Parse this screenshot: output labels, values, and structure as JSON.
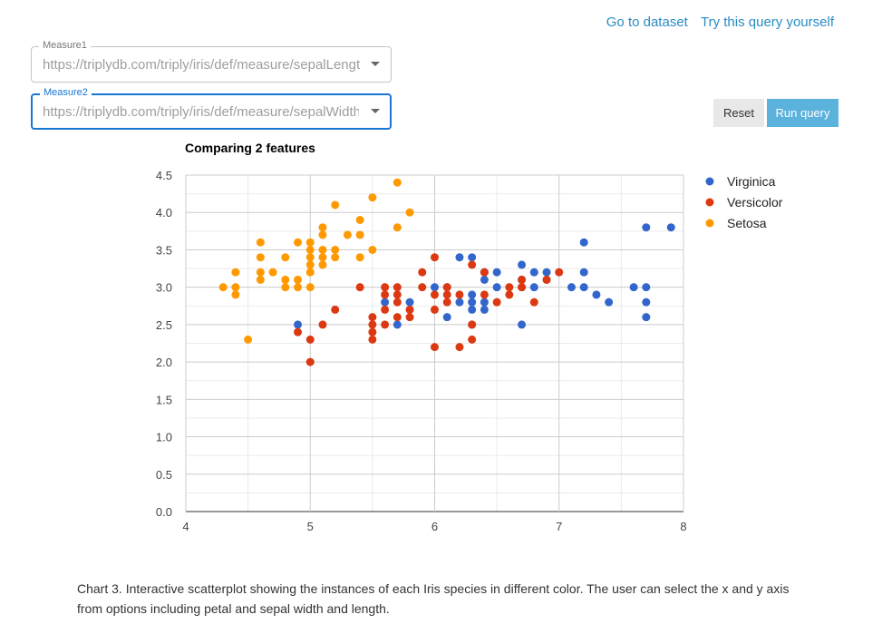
{
  "links": {
    "dataset": "Go to dataset",
    "query": "Try this query yourself"
  },
  "measure1": {
    "label": "Measure1",
    "value": "https://triplydb.com/triply/iris/def/measure/sepalLength"
  },
  "measure2": {
    "label": "Measure2",
    "value": "https://triplydb.com/triply/iris/def/measure/sepalWidth"
  },
  "buttons": {
    "reset": "Reset",
    "run": "Run query"
  },
  "caption": "Chart 3. Interactive scatterplot showing the instances of each Iris species in different color. The user can select the x and y axis from options including petal and sepal width and length.",
  "chart_data": {
    "type": "scatter",
    "title": "Comparing 2 features",
    "xlabel": "",
    "ylabel": "",
    "xlim": [
      4,
      8
    ],
    "ylim": [
      0,
      4.5
    ],
    "xticks": [
      "4",
      "5",
      "6",
      "7",
      "8"
    ],
    "yticks": [
      "0.0",
      "0.5",
      "1.0",
      "1.5",
      "2.0",
      "2.5",
      "3.0",
      "3.5",
      "4.0",
      "4.5"
    ],
    "grid": true,
    "legend_position": "right",
    "series": [
      {
        "name": "Virginica",
        "color": "#3366cc",
        "points": [
          [
            4.9,
            2.5
          ],
          [
            5.6,
            2.8
          ],
          [
            5.7,
            2.5
          ],
          [
            5.8,
            2.8
          ],
          [
            5.8,
            2.7
          ],
          [
            6.0,
            3.0
          ],
          [
            6.1,
            3.0
          ],
          [
            6.1,
            2.6
          ],
          [
            6.2,
            3.4
          ],
          [
            6.2,
            2.8
          ],
          [
            6.3,
            3.4
          ],
          [
            6.3,
            2.9
          ],
          [
            6.3,
            2.8
          ],
          [
            6.3,
            2.7
          ],
          [
            6.3,
            2.5
          ],
          [
            6.4,
            3.2
          ],
          [
            6.4,
            3.1
          ],
          [
            6.4,
            2.8
          ],
          [
            6.4,
            2.7
          ],
          [
            6.5,
            3.2
          ],
          [
            6.5,
            3.0
          ],
          [
            6.7,
            3.3
          ],
          [
            6.7,
            3.1
          ],
          [
            6.7,
            3.0
          ],
          [
            6.7,
            2.5
          ],
          [
            6.8,
            3.2
          ],
          [
            6.8,
            3.0
          ],
          [
            6.9,
            3.2
          ],
          [
            6.9,
            3.1
          ],
          [
            7.1,
            3.0
          ],
          [
            7.2,
            3.6
          ],
          [
            7.2,
            3.2
          ],
          [
            7.2,
            3.0
          ],
          [
            7.3,
            2.9
          ],
          [
            7.4,
            2.8
          ],
          [
            7.6,
            3.0
          ],
          [
            7.7,
            3.8
          ],
          [
            7.7,
            3.0
          ],
          [
            7.7,
            2.8
          ],
          [
            7.7,
            2.6
          ],
          [
            7.9,
            3.8
          ]
        ]
      },
      {
        "name": "Versicolor",
        "color": "#dc3912",
        "points": [
          [
            4.9,
            2.4
          ],
          [
            5.0,
            2.3
          ],
          [
            5.0,
            2.0
          ],
          [
            5.1,
            2.5
          ],
          [
            5.2,
            2.7
          ],
          [
            5.4,
            3.0
          ],
          [
            5.5,
            2.6
          ],
          [
            5.5,
            2.5
          ],
          [
            5.5,
            2.4
          ],
          [
            5.5,
            2.3
          ],
          [
            5.6,
            3.0
          ],
          [
            5.6,
            2.9
          ],
          [
            5.6,
            2.7
          ],
          [
            5.6,
            2.5
          ],
          [
            5.7,
            3.0
          ],
          [
            5.7,
            2.9
          ],
          [
            5.7,
            2.8
          ],
          [
            5.7,
            2.6
          ],
          [
            5.8,
            2.7
          ],
          [
            5.8,
            2.6
          ],
          [
            5.9,
            3.2
          ],
          [
            5.9,
            3.0
          ],
          [
            6.0,
            3.4
          ],
          [
            6.0,
            2.9
          ],
          [
            6.0,
            2.7
          ],
          [
            6.0,
            2.2
          ],
          [
            6.1,
            3.0
          ],
          [
            6.1,
            2.9
          ],
          [
            6.1,
            2.8
          ],
          [
            6.2,
            2.9
          ],
          [
            6.2,
            2.2
          ],
          [
            6.3,
            3.3
          ],
          [
            6.3,
            2.5
          ],
          [
            6.3,
            2.3
          ],
          [
            6.4,
            3.2
          ],
          [
            6.4,
            2.9
          ],
          [
            6.5,
            2.8
          ],
          [
            6.6,
            3.0
          ],
          [
            6.6,
            2.9
          ],
          [
            6.7,
            3.1
          ],
          [
            6.7,
            3.0
          ],
          [
            6.8,
            2.8
          ],
          [
            6.9,
            3.1
          ],
          [
            7.0,
            3.2
          ]
        ]
      },
      {
        "name": "Setosa",
        "color": "#ff9900",
        "points": [
          [
            4.3,
            3.0
          ],
          [
            4.4,
            3.2
          ],
          [
            4.4,
            3.0
          ],
          [
            4.4,
            2.9
          ],
          [
            4.5,
            2.3
          ],
          [
            4.6,
            3.6
          ],
          [
            4.6,
            3.4
          ],
          [
            4.6,
            3.2
          ],
          [
            4.6,
            3.1
          ],
          [
            4.7,
            3.2
          ],
          [
            4.8,
            3.4
          ],
          [
            4.8,
            3.1
          ],
          [
            4.8,
            3.0
          ],
          [
            4.9,
            3.6
          ],
          [
            4.9,
            3.1
          ],
          [
            4.9,
            3.0
          ],
          [
            5.0,
            3.6
          ],
          [
            5.0,
            3.5
          ],
          [
            5.0,
            3.4
          ],
          [
            5.0,
            3.3
          ],
          [
            5.0,
            3.2
          ],
          [
            5.0,
            3.0
          ],
          [
            5.1,
            3.8
          ],
          [
            5.1,
            3.7
          ],
          [
            5.1,
            3.5
          ],
          [
            5.1,
            3.4
          ],
          [
            5.1,
            3.3
          ],
          [
            5.2,
            4.1
          ],
          [
            5.2,
            3.5
          ],
          [
            5.2,
            3.4
          ],
          [
            5.3,
            3.7
          ],
          [
            5.4,
            3.9
          ],
          [
            5.4,
            3.7
          ],
          [
            5.4,
            3.4
          ],
          [
            5.5,
            4.2
          ],
          [
            5.5,
            3.5
          ],
          [
            5.7,
            4.4
          ],
          [
            5.7,
            3.8
          ],
          [
            5.8,
            4.0
          ]
        ]
      }
    ]
  }
}
